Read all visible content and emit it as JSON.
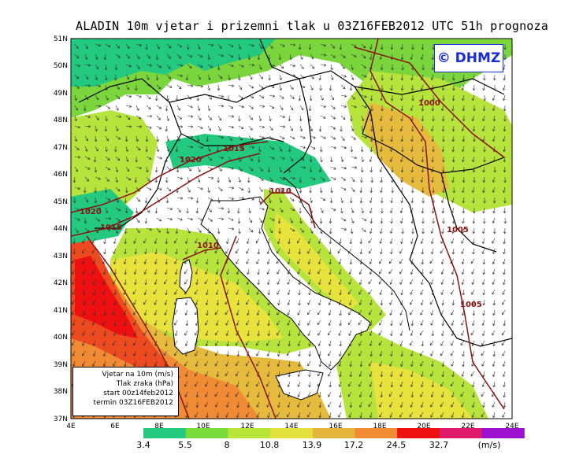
{
  "title": "ALADIN 10m vjetar i prizemni tlak u 03Z16FEB2012 UTC 51h prognoza",
  "logo": "© DHMZ",
  "info_box": {
    "line1": "Vjetar na 10m (m/s)",
    "line2": "Tlak zraka (hPa)",
    "line3": "start 00z14feb2012",
    "line4": "termin 03Z16FEB2012"
  },
  "lat_labels": [
    "51N",
    "50N",
    "49N",
    "48N",
    "47N",
    "46N",
    "45N",
    "44N",
    "43N",
    "42N",
    "41N",
    "40N",
    "39N",
    "38N",
    "37N"
  ],
  "lon_labels": [
    "4E",
    "6E",
    "8E",
    "10E",
    "12E",
    "14E",
    "16E",
    "18E",
    "20E",
    "22E",
    "24E"
  ],
  "isobar_labels": [
    "1000",
    "1015",
    "1020",
    "1010",
    "1020",
    "1015",
    "1010",
    "1005",
    "1005"
  ],
  "colorbar": {
    "values": [
      "3.4",
      "5.5",
      "8",
      "10.8",
      "13.9",
      "17.2",
      "24.5",
      "32.7"
    ],
    "unit": "(m/s)",
    "colors": [
      "#23c97f",
      "#79db3b",
      "#b8e53a",
      "#e2e03a",
      "#e5b43a",
      "#f28a34",
      "#ee1010",
      "#df1a6a",
      "#9c10d0"
    ]
  },
  "colors": {
    "sea_strong": "#ee4a1f",
    "sea_orange": "#f08a34",
    "sea_mustard": "#e6bb3d",
    "sea_yellow": "#e7e23c",
    "lightgreen": "#b6e33c",
    "green": "#7bd63d",
    "teal": "#23c97f",
    "isobar": "#8b1010",
    "border": "#000000"
  }
}
